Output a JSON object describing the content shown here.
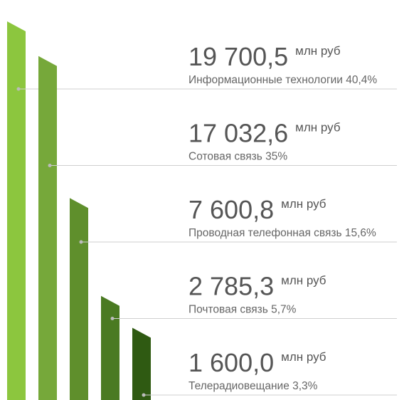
{
  "chart_data": {
    "type": "bar",
    "categories": [
      "Информационные технологии 40,4%",
      "Сотовая связь 35%",
      "Проводная телефонная связь 15,6%",
      "Почтовая связь 5,7%",
      "Телерадиовещание 3,3%"
    ],
    "values": [
      19700.5,
      17032.6,
      7600.8,
      2785.3,
      1600.0
    ],
    "value_labels": [
      "19 700,5",
      "17 032,6",
      "7 600,8",
      "2 785,3",
      "1 600,0"
    ],
    "unit": "млн руб",
    "colors": [
      "#8cc63e",
      "#76a83a",
      "#5f8f2c",
      "#4a7a22",
      "#2f5a12"
    ]
  }
}
